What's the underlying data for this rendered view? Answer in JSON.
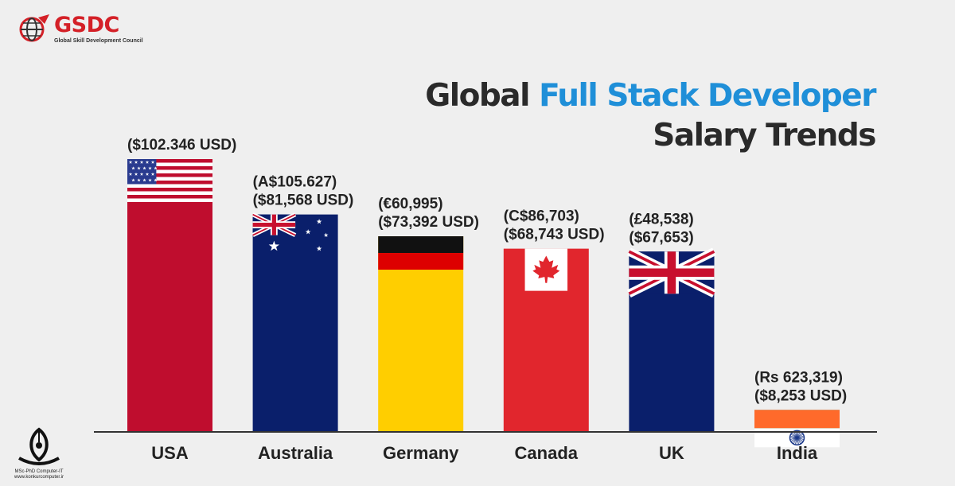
{
  "brand": {
    "logo_text": "GSDC",
    "logo_sub": "Global Skill Development Council"
  },
  "title": {
    "part1": "Global ",
    "accent": "Full Stack Developer",
    "line2": "Salary Trends"
  },
  "watermark": {
    "line1": "MSc-PhD Computer-IT",
    "line2": "www.konkurcomputer.ir"
  },
  "chart_data": {
    "type": "bar",
    "categories": [
      "USA",
      "Australia",
      "Germany",
      "Canada",
      "UK",
      "India"
    ],
    "values": [
      102346,
      81568,
      73392,
      68743,
      67653,
      8253
    ],
    "value_labels": [
      [
        "($102.346 USD)"
      ],
      [
        "(A$105.627)",
        "($81,568 USD)"
      ],
      [
        "(€60,995)",
        "($73,392 USD)"
      ],
      [
        "(C$86,703)",
        "($68,743 USD)"
      ],
      [
        "(£48,538)",
        "($67,653)"
      ],
      [
        "(Rs 623,319)",
        "($8,253 USD)"
      ]
    ],
    "bar_styles": [
      "usa-flag",
      "australia-flag",
      "germany-flag",
      "canada-flag",
      "uk-flag",
      "india-flag"
    ],
    "unit": "USD",
    "colors": {
      "usa_red": "#bf0d2e",
      "usa_blue": "#2a3b8f",
      "australia_blue": "#0a1f6b",
      "germany_black": "#111111",
      "germany_red": "#dd0000",
      "germany_gold": "#ffce00",
      "canada_red": "#e1262d",
      "uk_blue": "#0a1f6b",
      "india_saffron": "#ff6a2b",
      "india_green": "#1a7a3a",
      "india_chakra": "#1d3a8a"
    }
  }
}
